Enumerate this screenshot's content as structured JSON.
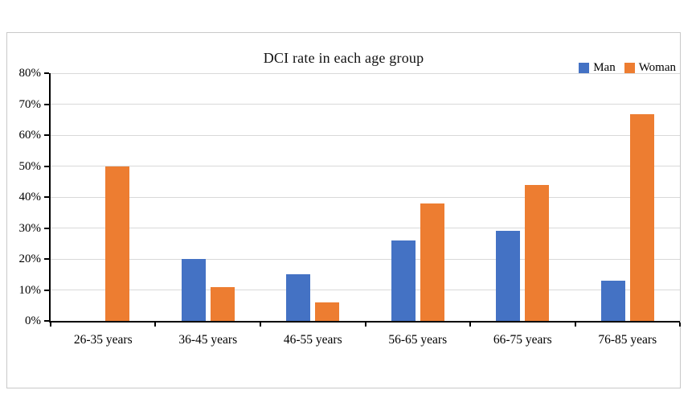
{
  "chart_data": {
    "type": "bar",
    "title": "DCI rate in each age group",
    "categories": [
      "26-35 years",
      "36-45 years",
      "46-55 years",
      "56-65 years",
      "66-75 years",
      "76-85 years"
    ],
    "series": [
      {
        "name": "Man",
        "color": "#4472C4",
        "values": [
          0,
          20,
          15,
          26,
          29,
          13
        ]
      },
      {
        "name": "Woman",
        "color": "#ED7D31",
        "values": [
          50,
          11,
          6,
          38,
          44,
          66.7
        ]
      }
    ],
    "xlabel": "",
    "ylabel": "",
    "ylim": [
      0,
      80
    ],
    "ytick_step": 10,
    "ytick_labels": [
      "0%",
      "10%",
      "20%",
      "30%",
      "40%",
      "50%",
      "60%",
      "70%",
      "80%"
    ],
    "grid": true,
    "gridline_color": "#d9d9d9",
    "axis_color": "#000000",
    "legend_position": "top-right"
  }
}
